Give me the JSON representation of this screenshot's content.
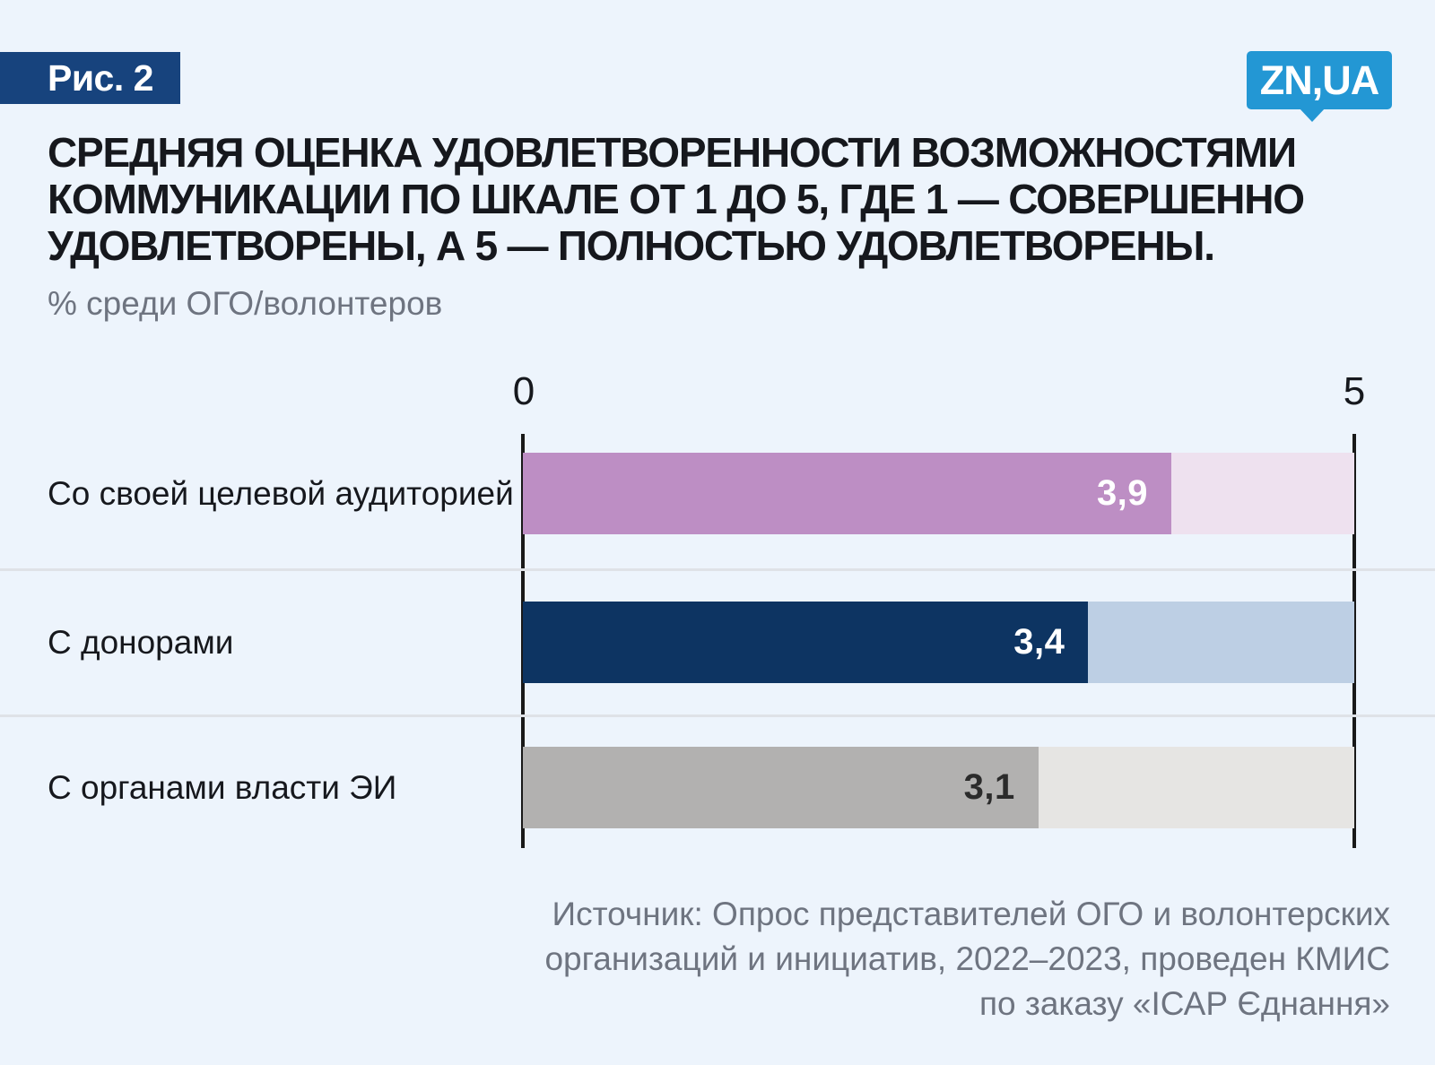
{
  "figure_label": "Рис. 2",
  "logo": {
    "text": "ZN,UA",
    "color": "#2397d4"
  },
  "title_lines": [
    "СРЕДНЯЯ ОЦЕНКА УДОВЛЕТВОРЕННОСТИ ВОЗМОЖНОСТЯМИ",
    "КОММУНИКАЦИИ ПО ШКАЛЕ ОТ 1 ДО 5, ГДЕ 1 — СОВЕРШЕННО",
    "УДОВЛЕТВОРЕНЫ, А 5 — ПОЛНОСТЬЮ УДОВЛЕТВОРЕНЫ."
  ],
  "subtitle": "% среди ОГО/волонтеров",
  "source_lines": [
    "Источник: Опрос представителей ОГО и волонтерских",
    "организаций и инициатив, 2022–2023, проведен КМИС",
    "по заказу «ІСАР Єднання»"
  ],
  "chart_data": {
    "type": "bar",
    "orientation": "horizontal",
    "title": "Средняя оценка удовлетворенности возможностями коммуникации по шкале от 1 до 5, где 1 — совершенно удовлетворены, а 5 — полностью удовлетворены.",
    "subtitle": "% среди ОГО/волонтеров",
    "categories": [
      "Со своей целевой аудиторией",
      "С донорами",
      "С органами власти ЭИ"
    ],
    "values": [
      3.9,
      3.4,
      3.1
    ],
    "value_labels": [
      "3,9",
      "3,4",
      "3,1"
    ],
    "xlim": [
      0,
      5
    ],
    "axis_ticks": [
      "0",
      "5"
    ],
    "grid": false,
    "legend": false,
    "bar_colors": [
      "#bd8ec4",
      "#0d3462",
      "#b2b1b0"
    ],
    "track_colors": [
      "#eee1ef",
      "#bdcfe4",
      "#e6e5e3"
    ],
    "value_text_colors": [
      "#ffffff",
      "#ffffff",
      "#2b2b2b"
    ]
  },
  "colors": {
    "background": "#edf4fc",
    "badge": "#17437d",
    "title_text": "#16181d",
    "muted_text": "#6e7480",
    "axis_line": "#191919",
    "separator": "#dfe2e7"
  }
}
